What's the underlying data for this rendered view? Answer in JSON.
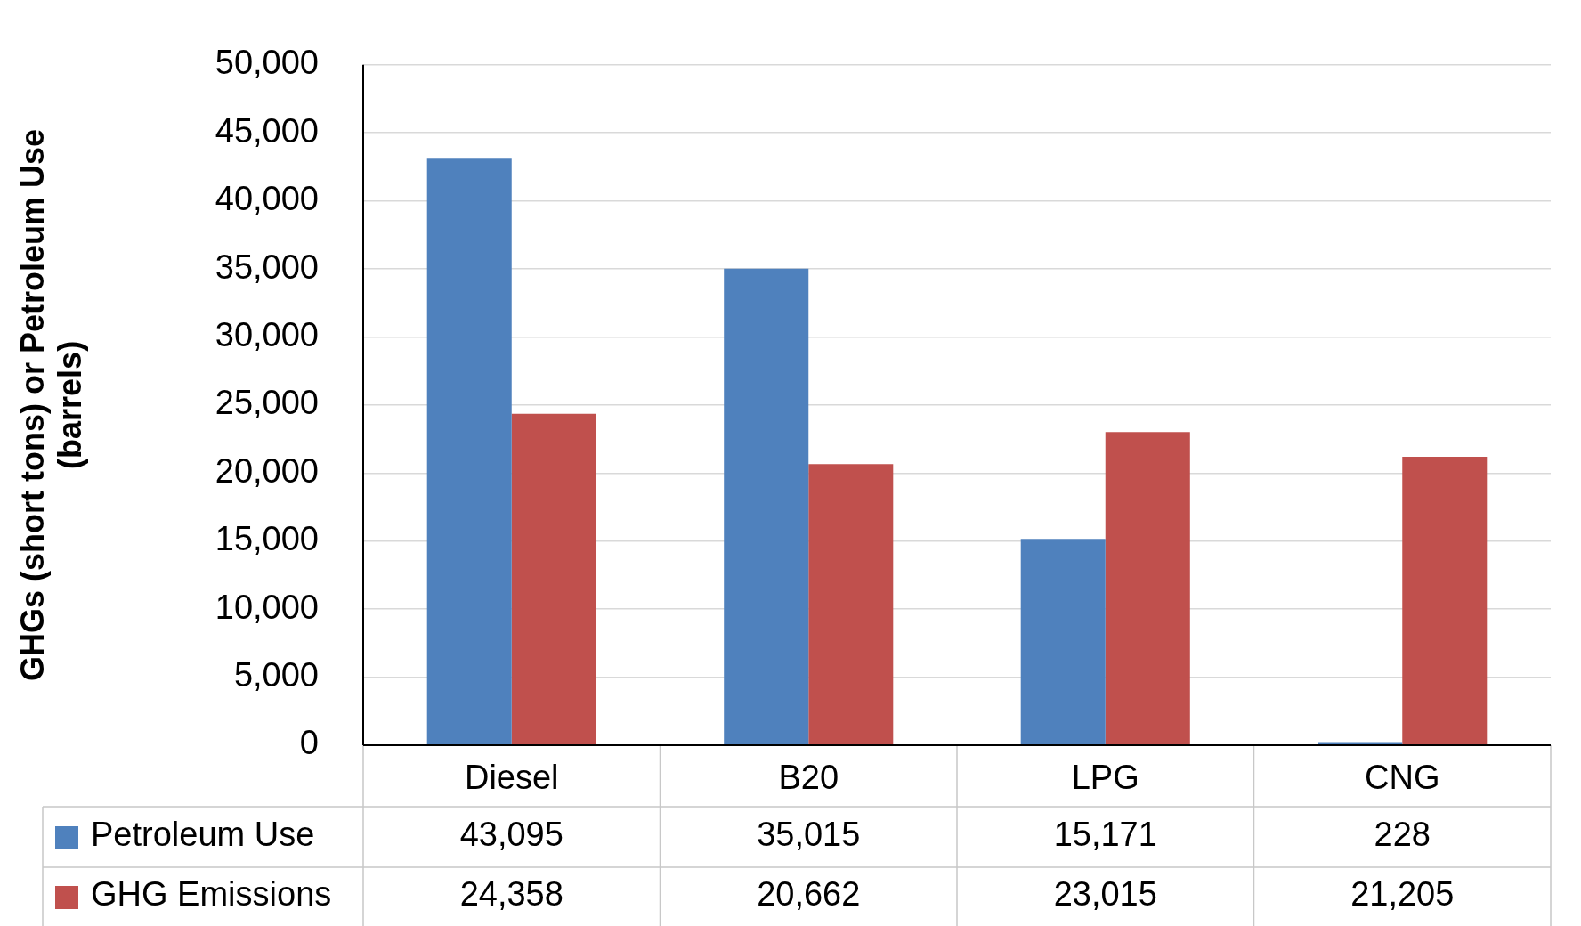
{
  "chart_data": {
    "type": "bar",
    "ylabel": "GHGs (short tons) or Petroleum Use (barrels)",
    "categories": [
      "Diesel",
      "B20",
      "LPG",
      "CNG"
    ],
    "series": [
      {
        "name": "Petroleum Use",
        "color": "#4f81bd",
        "values": [
          43095,
          35015,
          15171,
          228
        ],
        "value_labels": [
          "43,095",
          "35,015",
          "15,171",
          "228"
        ]
      },
      {
        "name": "GHG Emissions",
        "color": "#c0504d",
        "values": [
          24358,
          20662,
          23015,
          21205
        ],
        "value_labels": [
          "24,358",
          "20,662",
          "23,015",
          "21,205"
        ]
      }
    ],
    "ylim": [
      0,
      50000
    ],
    "yticks": [
      0,
      {
        "value": 5000,
        "label": "5,000"
      },
      {
        "value": 10000,
        "label": "10,000"
      },
      {
        "value": 15000,
        "label": "15,000"
      },
      {
        "value": 20000,
        "label": "20,000"
      },
      {
        "value": 25000,
        "label": "25,000"
      },
      {
        "value": 30000,
        "label": "30,000"
      },
      {
        "value": 35000,
        "label": "35,000"
      },
      {
        "value": 40000,
        "label": "40,000"
      },
      {
        "value": 45000,
        "label": "45,000"
      },
      {
        "value": 50000,
        "label": "50,000"
      }
    ],
    "grid": "y",
    "legend": "bottom"
  }
}
